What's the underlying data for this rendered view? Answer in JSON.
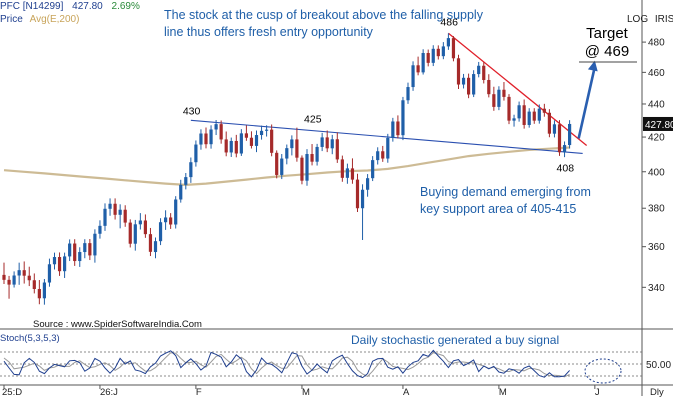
{
  "header": {
    "symbol": "PFC [N14299]",
    "price": "427.80",
    "change": "2.69%",
    "ma_label_a": "Price",
    "ma_label_b": "Avg(E,200)",
    "scale_log": "LOG",
    "scale_name": "IRIS",
    "last_price_tag": "427.80"
  },
  "notes": {
    "breakout": [
      "The stock at the cusp of breakout above the falling supply",
      "line thus offers fresh entry opportunity"
    ],
    "demand": [
      "Buying demand emerging from",
      "key support area of 405-415"
    ],
    "target_title": "Target",
    "target_value": "@ 469",
    "stochastic": "Daily stochastic generated a buy signal",
    "source": "Source : www.SpiderSoftwareIndia.Com"
  },
  "stoch_panel": {
    "label": "Stoch(5,3,5,3)",
    "level_label": "50.00"
  },
  "colors": {
    "up": "#1f5fa8",
    "down": "#a52a2a",
    "ema": "#c8b48a",
    "resistance": "#e0202a",
    "support": "#2a4fb0",
    "arrow": "#2a5fb0",
    "stoch_k": "#1f3f8f",
    "stoch_d": "#9a9a9a"
  },
  "chart_data": {
    "type": "candlestick",
    "yscale": "log",
    "ylim": [
      322,
      505
    ],
    "y_ticks": [
      340,
      360,
      380,
      400,
      420,
      440,
      460,
      480
    ],
    "x_ticks": [
      "25:D",
      "26:J",
      "F",
      "M",
      "A",
      "M",
      "J",
      "Dly"
    ],
    "price_labels": [
      "430",
      "425",
      "486",
      "408"
    ],
    "candles": [
      [
        0,
        346.0,
        352.0,
        341.6,
        343.6
      ],
      [
        1,
        343.6,
        345.5,
        334.6,
        341.3
      ],
      [
        2,
        341.3,
        347.7,
        339.9,
        345.7
      ],
      [
        3,
        345.7,
        352.0,
        341.2,
        348.3
      ],
      [
        4,
        348.3,
        352.6,
        341.8,
        345.6
      ],
      [
        5,
        345.6,
        350.0,
        340.6,
        343.4
      ],
      [
        6,
        343.4,
        346.7,
        337.1,
        339.2
      ],
      [
        7,
        339.2,
        343.5,
        332.0,
        334.8
      ],
      [
        8,
        334.8,
        344.0,
        331.8,
        342.3
      ],
      [
        9,
        342.3,
        354.0,
        340.3,
        351.2
      ],
      [
        10,
        351.2,
        357.0,
        348.6,
        354.8
      ],
      [
        11,
        354.8,
        357.1,
        345.5,
        347.8
      ],
      [
        12,
        347.8,
        357.0,
        344.5,
        355.1
      ],
      [
        13,
        355.1,
        363.7,
        352.8,
        361.6
      ],
      [
        14,
        361.6,
        363.8,
        350.4,
        352.8
      ],
      [
        15,
        352.8,
        359.7,
        349.9,
        357.3
      ],
      [
        16,
        357.3,
        363.8,
        354.2,
        361.8
      ],
      [
        17,
        361.8,
        363.9,
        353.3,
        355.6
      ],
      [
        18,
        355.6,
        368.9,
        352.0,
        366.6
      ],
      [
        19,
        366.6,
        373.6,
        364.1,
        370.7
      ],
      [
        20,
        370.7,
        382.6,
        368.1,
        379.7
      ],
      [
        21,
        379.7,
        385.3,
        376.0,
        382.4
      ],
      [
        22,
        382.4,
        385.3,
        374.0,
        376.5
      ],
      [
        23,
        376.5,
        382.1,
        369.4,
        379.2
      ],
      [
        24,
        379.2,
        381.6,
        370.2,
        372.4
      ],
      [
        25,
        372.4,
        374.1,
        359.6,
        361.5
      ],
      [
        26,
        361.5,
        373.8,
        358.0,
        371.5
      ],
      [
        27,
        371.5,
        377.4,
        368.8,
        373.5
      ],
      [
        28,
        373.5,
        376.7,
        364.5,
        366.4
      ],
      [
        29,
        366.4,
        369.6,
        355.3,
        357.4
      ],
      [
        30,
        357.3,
        364.7,
        354.2,
        362.8
      ],
      [
        31,
        362.8,
        374.7,
        360.8,
        372.6
      ],
      [
        32,
        372.6,
        378.9,
        368.6,
        375.1
      ],
      [
        33,
        375.1,
        377.4,
        369.1,
        371.4
      ],
      [
        34,
        371.4,
        386.5,
        369.3,
        384.7
      ],
      [
        35,
        384.7,
        395.5,
        383.0,
        392.7
      ],
      [
        36,
        392.7,
        399.3,
        390.2,
        397.0
      ],
      [
        37,
        397.0,
        408.1,
        393.8,
        405.4
      ],
      [
        38,
        405.4,
        418.0,
        402.9,
        415.6
      ],
      [
        39,
        415.6,
        424.6,
        412.6,
        422.1
      ],
      [
        40,
        422.1,
        425.7,
        413.4,
        415.8
      ],
      [
        41,
        415.8,
        427.0,
        413.2,
        424.5
      ],
      [
        42,
        424.5,
        430.2,
        421.2,
        427.7
      ],
      [
        43,
        427.7,
        429.9,
        416.1,
        418.6
      ],
      [
        44,
        418.6,
        423.3,
        408.8,
        411.0
      ],
      [
        45,
        411.0,
        419.7,
        408.4,
        417.7
      ],
      [
        46,
        417.7,
        421.3,
        408.2,
        410.4
      ],
      [
        47,
        410.4,
        424.7,
        409.0,
        422.2
      ],
      [
        48,
        422.2,
        427.0,
        417.8,
        419.6
      ],
      [
        49,
        419.6,
        423.4,
        413.3,
        414.8
      ],
      [
        50,
        414.8,
        423.9,
        411.2,
        421.2
      ],
      [
        51,
        421.2,
        426.8,
        418.5,
        423.7
      ],
      [
        52,
        423.7,
        427.0,
        420.3,
        424.4
      ],
      [
        53,
        424.4,
        427.5,
        408.8,
        410.8
      ],
      [
        54,
        410.8,
        412.2,
        396.3,
        398.2
      ],
      [
        55,
        398.2,
        410.1,
        395.9,
        407.5
      ],
      [
        56,
        407.5,
        415.6,
        404.2,
        413.5
      ],
      [
        57,
        413.5,
        421.0,
        409.3,
        418.6
      ],
      [
        58,
        418.6,
        425.6,
        405.7,
        408.0
      ],
      [
        59,
        408.0,
        409.3,
        393.0,
        395.0
      ],
      [
        60,
        395.0,
        412.9,
        392.2,
        410.1
      ],
      [
        61,
        410.1,
        415.9,
        403.6,
        405.7
      ],
      [
        62,
        405.7,
        416.0,
        403.5,
        414.2
      ],
      [
        63,
        414.2,
        422.5,
        411.8,
        419.8
      ],
      [
        64,
        419.8,
        423.9,
        411.2,
        413.4
      ],
      [
        65,
        413.4,
        421.3,
        410.0,
        418.7
      ],
      [
        66,
        418.7,
        422.8,
        405.0,
        407.0
      ],
      [
        67,
        407.0,
        409.2,
        394.4,
        396.6
      ],
      [
        68,
        396.6,
        404.6,
        393.3,
        401.9
      ],
      [
        69,
        401.9,
        407.6,
        393.3,
        395.6
      ],
      [
        70,
        395.6,
        398.9,
        378.0,
        380.0
      ],
      [
        71,
        380.0,
        393.0,
        363.4,
        390.0
      ],
      [
        72,
        390.0,
        398.7,
        386.2,
        396.4
      ],
      [
        73,
        396.4,
        408.9,
        394.8,
        406.6
      ],
      [
        74,
        406.6,
        414.0,
        404.1,
        411.7
      ],
      [
        75,
        411.7,
        414.8,
        405.6,
        407.5
      ],
      [
        76,
        407.5,
        421.9,
        405.1,
        419.5
      ],
      [
        77,
        419.5,
        431.5,
        417.3,
        429.3
      ],
      [
        78,
        429.3,
        433.0,
        419.2,
        421.1
      ],
      [
        79,
        421.1,
        444.4,
        418.2,
        442.3
      ],
      [
        80,
        442.3,
        453.4,
        440.1,
        450.6
      ],
      [
        81,
        450.6,
        467.2,
        448.2,
        464.6
      ],
      [
        82,
        464.6,
        470.3,
        458.1,
        460.0
      ],
      [
        83,
        460.0,
        475.2,
        458.6,
        472.7
      ],
      [
        84,
        472.7,
        475.0,
        463.9,
        466.2
      ],
      [
        85,
        466.2,
        477.9,
        464.1,
        475.5
      ],
      [
        86,
        475.5,
        477.8,
        468.4,
        470.6
      ],
      [
        87,
        470.6,
        480.0,
        468.6,
        477.1
      ],
      [
        88,
        477.1,
        486.0,
        474.8,
        482.7
      ],
      [
        89,
        482.7,
        484.1,
        467.2,
        469.2
      ],
      [
        90,
        469.2,
        471.5,
        449.4,
        452.2
      ],
      [
        91,
        452.2,
        459.0,
        449.7,
        456.5
      ],
      [
        92,
        456.5,
        459.2,
        443.6,
        445.9
      ],
      [
        93,
        445.9,
        461.4,
        444.3,
        458.9
      ],
      [
        94,
        458.9,
        466.8,
        456.8,
        464.3
      ],
      [
        95,
        464.3,
        466.6,
        452.9,
        455.1
      ],
      [
        96,
        455.1,
        458.8,
        444.1,
        446.1
      ],
      [
        97,
        446.1,
        450.8,
        435.8,
        438.2
      ],
      [
        98,
        438.2,
        451.1,
        436.2,
        448.9
      ],
      [
        99,
        448.9,
        453.8,
        442.1,
        444.4
      ],
      [
        100,
        444.4,
        446.1,
        427.7,
        429.8
      ],
      [
        101,
        429.8,
        433.4,
        426.2,
        431.2
      ],
      [
        102,
        431.2,
        441.5,
        429.2,
        439.2
      ],
      [
        103,
        439.2,
        442.8,
        425.0,
        427.2
      ],
      [
        104,
        427.2,
        437.4,
        425.6,
        435.3
      ],
      [
        105,
        435.3,
        437.4,
        427.9,
        429.8
      ],
      [
        106,
        429.8,
        439.7,
        428.0,
        437.1
      ],
      [
        107,
        437.1,
        440.1,
        432.2,
        434.6
      ],
      [
        108,
        434.6,
        436.8,
        419.9,
        422.0
      ],
      [
        109,
        422.0,
        430.0,
        419.8,
        427.6
      ],
      [
        110,
        427.6,
        430.1,
        409.0,
        411.1
      ],
      [
        111,
        411.1,
        417.4,
        408.3,
        415.3
      ],
      [
        112,
        415.3,
        430.1,
        413.3,
        427.8
      ]
    ],
    "ema_200": [
      [
        0,
        400.9
      ],
      [
        4,
        400.0
      ],
      [
        8,
        399.1
      ],
      [
        12,
        398.1
      ],
      [
        16,
        397.1
      ],
      [
        20,
        396.2
      ],
      [
        24,
        395.2
      ],
      [
        28,
        394.3
      ],
      [
        32,
        393.4
      ],
      [
        36,
        392.7
      ],
      [
        40,
        393.4
      ],
      [
        44,
        394.5
      ],
      [
        48,
        395.6
      ],
      [
        52,
        396.8
      ],
      [
        56,
        397.8
      ],
      [
        60,
        398.6
      ],
      [
        64,
        399.6
      ],
      [
        68,
        400.3
      ],
      [
        72,
        400.7
      ],
      [
        76,
        401.6
      ],
      [
        80,
        403.2
      ],
      [
        84,
        405.1
      ],
      [
        88,
        407.0
      ],
      [
        92,
        408.9
      ],
      [
        96,
        410.2
      ],
      [
        100,
        411.4
      ],
      [
        104,
        412.5
      ],
      [
        108,
        413.2
      ],
      [
        112,
        413.9
      ]
    ],
    "resistance_line": [
      [
        88,
        486
      ],
      [
        113,
        418
      ]
    ],
    "support_line": [
      [
        37,
        430
      ],
      [
        113,
        411
      ]
    ],
    "target_arrow": [
      [
        113,
        418
      ],
      [
        117,
        469
      ]
    ],
    "stochastic": {
      "k": [
        57,
        40,
        24,
        23,
        53,
        64,
        54,
        32,
        26,
        40,
        49,
        46,
        43,
        58,
        59,
        53,
        32,
        40,
        64,
        57,
        40,
        27,
        40,
        64,
        50,
        58,
        35,
        32,
        26,
        43,
        52,
        70,
        77,
        83,
        71,
        41,
        53,
        63,
        51,
        35,
        45,
        79,
        74,
        67,
        43,
        55,
        73,
        63,
        31,
        18,
        35,
        65,
        52,
        49,
        40,
        28,
        53,
        78,
        75,
        45,
        25,
        35,
        50,
        38,
        28,
        58,
        66,
        72,
        51,
        33,
        21,
        16,
        26,
        57,
        63,
        64,
        42,
        37,
        43,
        27,
        43,
        54,
        58,
        74,
        69,
        84,
        70,
        57,
        41,
        58,
        61,
        46,
        52,
        60,
        31,
        45,
        38,
        44,
        30,
        27,
        38,
        35,
        27,
        40,
        45,
        33,
        21,
        17,
        28,
        18,
        18,
        20,
        34
      ],
      "d": [
        65,
        55,
        38,
        40,
        42,
        47,
        52,
        45,
        34,
        40,
        42,
        48,
        44,
        44,
        54,
        58,
        49,
        41,
        43,
        49,
        53,
        46,
        34,
        42,
        55,
        51,
        53,
        42,
        32,
        33,
        41,
        53,
        66,
        78,
        77,
        64,
        53,
        54,
        57,
        48,
        42,
        55,
        69,
        74,
        62,
        51,
        58,
        67,
        58,
        38,
        26,
        40,
        50,
        55,
        46,
        39,
        40,
        55,
        71,
        70,
        48,
        34,
        37,
        43,
        39,
        38,
        50,
        65,
        67,
        57,
        35,
        25,
        19,
        32,
        48,
        63,
        55,
        44,
        41,
        39,
        36,
        42,
        51,
        62,
        67,
        78,
        75,
        71,
        56,
        52,
        55,
        55,
        53,
        53,
        49,
        45,
        39,
        42,
        38,
        32,
        31,
        36,
        35,
        33,
        39,
        38,
        35,
        26,
        21,
        22,
        21,
        18,
        24
      ],
      "levels": [
        20,
        50,
        80
      ]
    }
  }
}
